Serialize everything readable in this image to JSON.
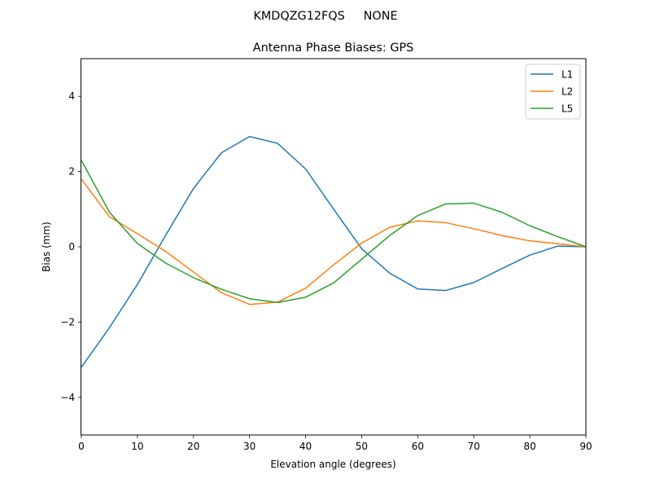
{
  "suptitle": "KMDQZG12FQS     NONE",
  "chart_data": {
    "type": "line",
    "title": "Antenna Phase Biases: GPS",
    "xlabel": "Elevation angle (degrees)",
    "ylabel": "Bias (mm)",
    "xlim": [
      0,
      90
    ],
    "ylim": [
      -5,
      5
    ],
    "xticks": [
      0,
      10,
      20,
      30,
      40,
      50,
      60,
      70,
      80,
      90
    ],
    "yticks": [
      -4,
      -2,
      0,
      2,
      4
    ],
    "legend_position": "top-right",
    "x": [
      0,
      5,
      10,
      15,
      20,
      25,
      30,
      35,
      40,
      45,
      50,
      55,
      60,
      65,
      70,
      75,
      80,
      85,
      90
    ],
    "series": [
      {
        "name": "L1",
        "color": "#1f77b4",
        "values": [
          -3.2,
          -2.15,
          -1.0,
          0.3,
          1.55,
          2.5,
          2.93,
          2.75,
          2.07,
          1.0,
          -0.05,
          -0.7,
          -1.12,
          -1.16,
          -0.95,
          -0.58,
          -0.22,
          0.02,
          0.0
        ]
      },
      {
        "name": "L2",
        "color": "#ff7f0e",
        "values": [
          1.8,
          0.8,
          0.35,
          -0.12,
          -0.67,
          -1.22,
          -1.53,
          -1.47,
          -1.1,
          -0.48,
          0.1,
          0.52,
          0.69,
          0.64,
          0.48,
          0.3,
          0.16,
          0.08,
          0.0
        ]
      },
      {
        "name": "L5",
        "color": "#2ca02c",
        "values": [
          2.3,
          0.92,
          0.09,
          -0.43,
          -0.82,
          -1.13,
          -1.38,
          -1.48,
          -1.34,
          -0.96,
          -0.33,
          0.3,
          0.83,
          1.14,
          1.16,
          0.92,
          0.56,
          0.27,
          0.0
        ]
      }
    ]
  }
}
